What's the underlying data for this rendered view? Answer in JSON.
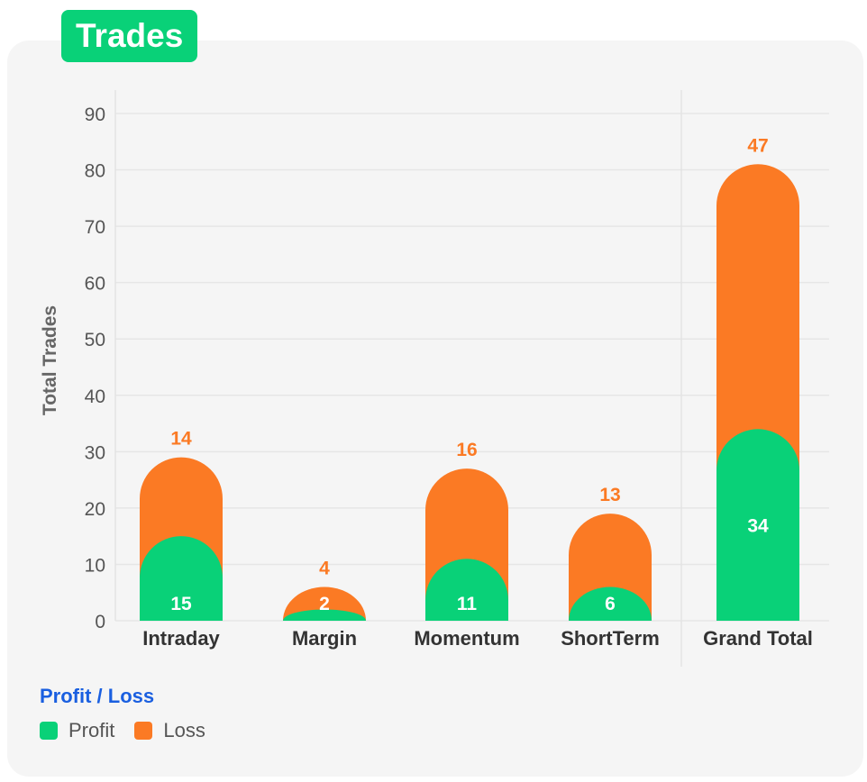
{
  "title": "Trades",
  "colors": {
    "profit": "#09d178",
    "loss": "#fb7a24",
    "legend_title": "#1a5fe0"
  },
  "legend": {
    "title": "Profit / Loss",
    "items": [
      {
        "label": "Profit",
        "color": "#09d178"
      },
      {
        "label": "Loss",
        "color": "#fb7a24"
      }
    ]
  },
  "chart_data": {
    "type": "bar",
    "stacked": true,
    "title": "",
    "xlabel": "",
    "ylabel": "Total Trades",
    "ylim": [
      0,
      90
    ],
    "yticks": [
      0,
      10,
      20,
      30,
      40,
      50,
      60,
      70,
      80,
      90
    ],
    "grid": true,
    "legend_position": "bottom-left",
    "categories": [
      "Intraday",
      "Margin",
      "Momentum",
      "ShortTerm",
      "Grand Total"
    ],
    "series": [
      {
        "name": "Profit",
        "values": [
          15,
          2,
          11,
          6,
          34
        ]
      },
      {
        "name": "Loss",
        "values": [
          14,
          4,
          16,
          13,
          47
        ]
      }
    ]
  }
}
